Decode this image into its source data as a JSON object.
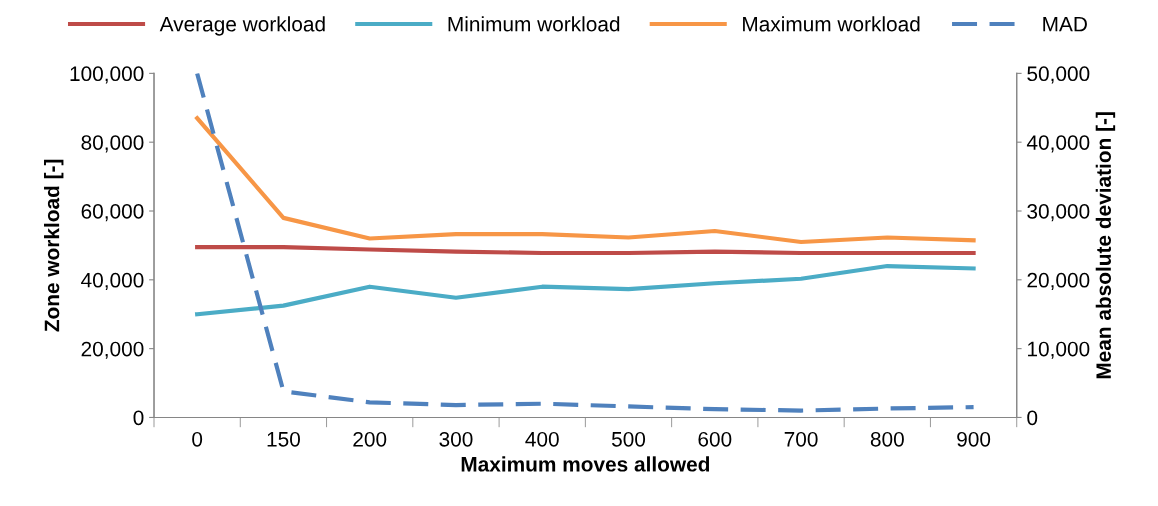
{
  "chart_data": {
    "type": "line",
    "xlabel": "Maximum moves allowed",
    "ylabel": "Zone workload [-]",
    "y2label": "Mean absolute deviation [-]",
    "categories": [
      "0",
      "150",
      "200",
      "300",
      "400",
      "500",
      "600",
      "700",
      "800",
      "900"
    ],
    "series": [
      {
        "name": "Average workload",
        "color": "#be4b48",
        "values": [
          49500,
          49500,
          48800,
          48200,
          47800,
          47800,
          48200,
          47800,
          47800,
          47800
        ]
      },
      {
        "name": "Minimum workload",
        "color": "#4bacc6",
        "values": [
          30000,
          32500,
          38000,
          34800,
          38000,
          37300,
          39000,
          40300,
          44000,
          43300
        ]
      },
      {
        "name": "Maximum workload",
        "color": "#f79646",
        "values": [
          87000,
          58000,
          52000,
          53300,
          53300,
          52300,
          54200,
          51000,
          52300,
          51500
        ]
      },
      {
        "name": "MAD",
        "color": "#4f81bd",
        "axis": "y2",
        "line_style": "dashed",
        "values": [
          50000,
          3800,
          2200,
          1800,
          2000,
          1600,
          1200,
          1000,
          1300,
          1500
        ]
      }
    ],
    "ylim": [
      0,
      100000
    ],
    "yticks": [
      {
        "value": 0,
        "label": "0"
      },
      {
        "value": 20000,
        "label": "20,000"
      },
      {
        "value": 40000,
        "label": "40,000"
      },
      {
        "value": 60000,
        "label": "60,000"
      },
      {
        "value": 80000,
        "label": "80,000"
      },
      {
        "value": 100000,
        "label": "100,000"
      }
    ],
    "y2lim": [
      0,
      50000
    ],
    "y2ticks": [
      {
        "value": 0,
        "label": "0"
      },
      {
        "value": 10000,
        "label": "10,000"
      },
      {
        "value": 20000,
        "label": "20,000"
      },
      {
        "value": 30000,
        "label": "30,000"
      },
      {
        "value": 40000,
        "label": "40,000"
      },
      {
        "value": 50000,
        "label": "50,000"
      }
    ],
    "grid": false,
    "legend": "top",
    "marker": "none",
    "line_style": "solid"
  }
}
